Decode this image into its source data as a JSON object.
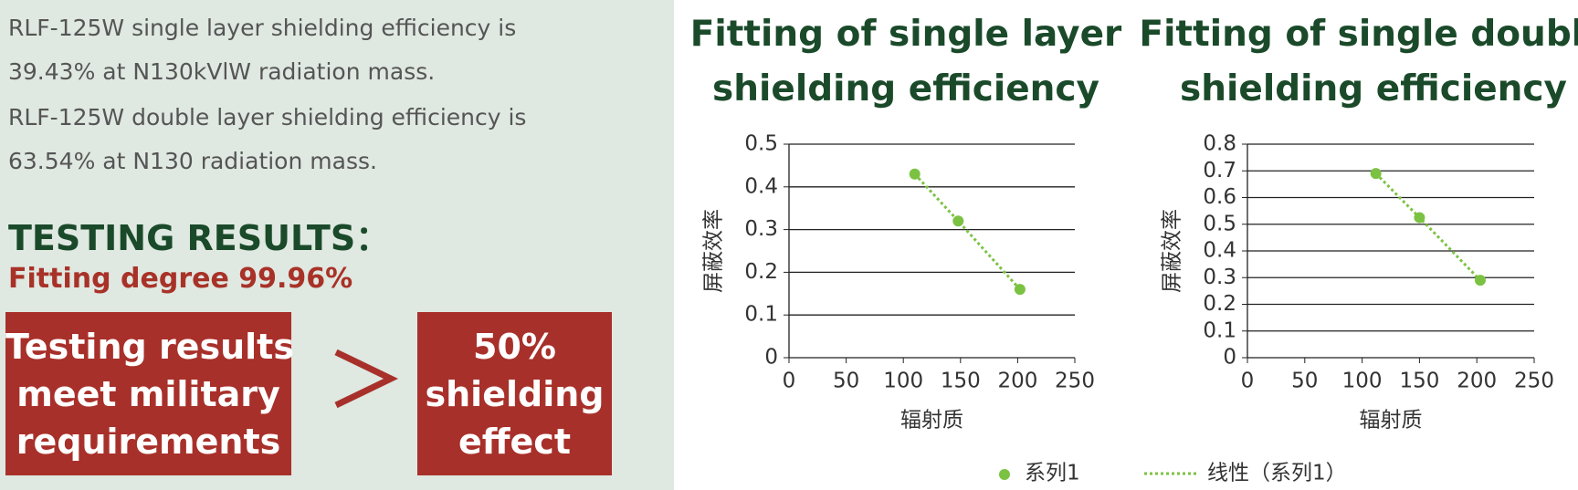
{
  "left_panel": {
    "lines": [
      "RLF-125W single layer shielding efficiency is",
      "39.43% at N130kVlW radiation mass.",
      "RLF-125W double layer shielding efficiency is",
      "63.54% at N130 radiation mass."
    ],
    "heading": "TESTING RESULTS：",
    "fitting": "Fitting degree 99.96%",
    "box_left": [
      "Testing results",
      "meet military",
      "requirements"
    ],
    "box_right": [
      "50%",
      "shielding",
      "effect"
    ]
  },
  "chart_data": [
    {
      "type": "scatter",
      "title": "Fitting of single layer shielding efficiency",
      "x_label": "辐射质",
      "y_label": "屏蔽效率",
      "series": [
        {
          "name": "系列1",
          "color": "#7cc242",
          "x": [
            110,
            148,
            202
          ],
          "values": [
            0.43,
            0.32,
            0.16
          ]
        }
      ],
      "trendline_name": "线性（系列1）",
      "xlim": [
        0,
        250
      ],
      "xticks": [
        0,
        50,
        100,
        150,
        200,
        250
      ],
      "ylim": [
        0,
        0.5
      ],
      "yticks": [
        0,
        0.1,
        0.2,
        0.3,
        0.4,
        0.5
      ],
      "grid": true
    },
    {
      "type": "scatter",
      "title": "Fitting of single double shielding efficiency",
      "x_label": "辐射质",
      "y_label": "屏蔽效率",
      "series": [
        {
          "color": "#7cc242",
          "x": [
            112,
            150,
            203
          ],
          "values": [
            0.69,
            0.525,
            0.29
          ]
        }
      ],
      "xlim": [
        0,
        250
      ],
      "xticks": [
        0,
        50,
        100,
        150,
        200,
        250
      ],
      "ylim": [
        0,
        0.8
      ],
      "yticks": [
        0,
        0.1,
        0.2,
        0.3,
        0.4,
        0.5,
        0.6,
        0.7,
        0.8
      ],
      "grid": true
    }
  ]
}
